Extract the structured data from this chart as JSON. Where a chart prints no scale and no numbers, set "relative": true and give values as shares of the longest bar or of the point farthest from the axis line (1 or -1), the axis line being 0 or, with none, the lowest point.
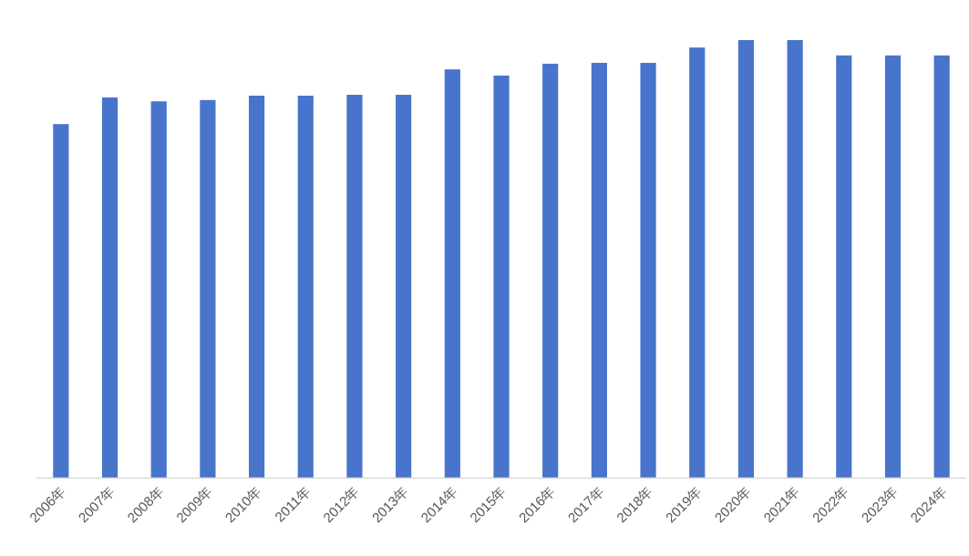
{
  "chart_data": {
    "type": "bar",
    "relative": true,
    "color": "#4874cb",
    "categories": [
      "2006年",
      "2007年",
      "2008年",
      "2009年",
      "2010年",
      "2011年",
      "2012年",
      "2013年",
      "2014年",
      "2015年",
      "2016年",
      "2017年",
      "2018年",
      "2019年",
      "2020年",
      "2021年",
      "2022年",
      "2023年",
      "2024年"
    ],
    "values": [
      0.808,
      0.869,
      0.86,
      0.863,
      0.873,
      0.873,
      0.875,
      0.875,
      0.933,
      0.919,
      0.946,
      0.948,
      0.948,
      0.983,
      1,
      1,
      0.965,
      0.965,
      0.965
    ]
  }
}
